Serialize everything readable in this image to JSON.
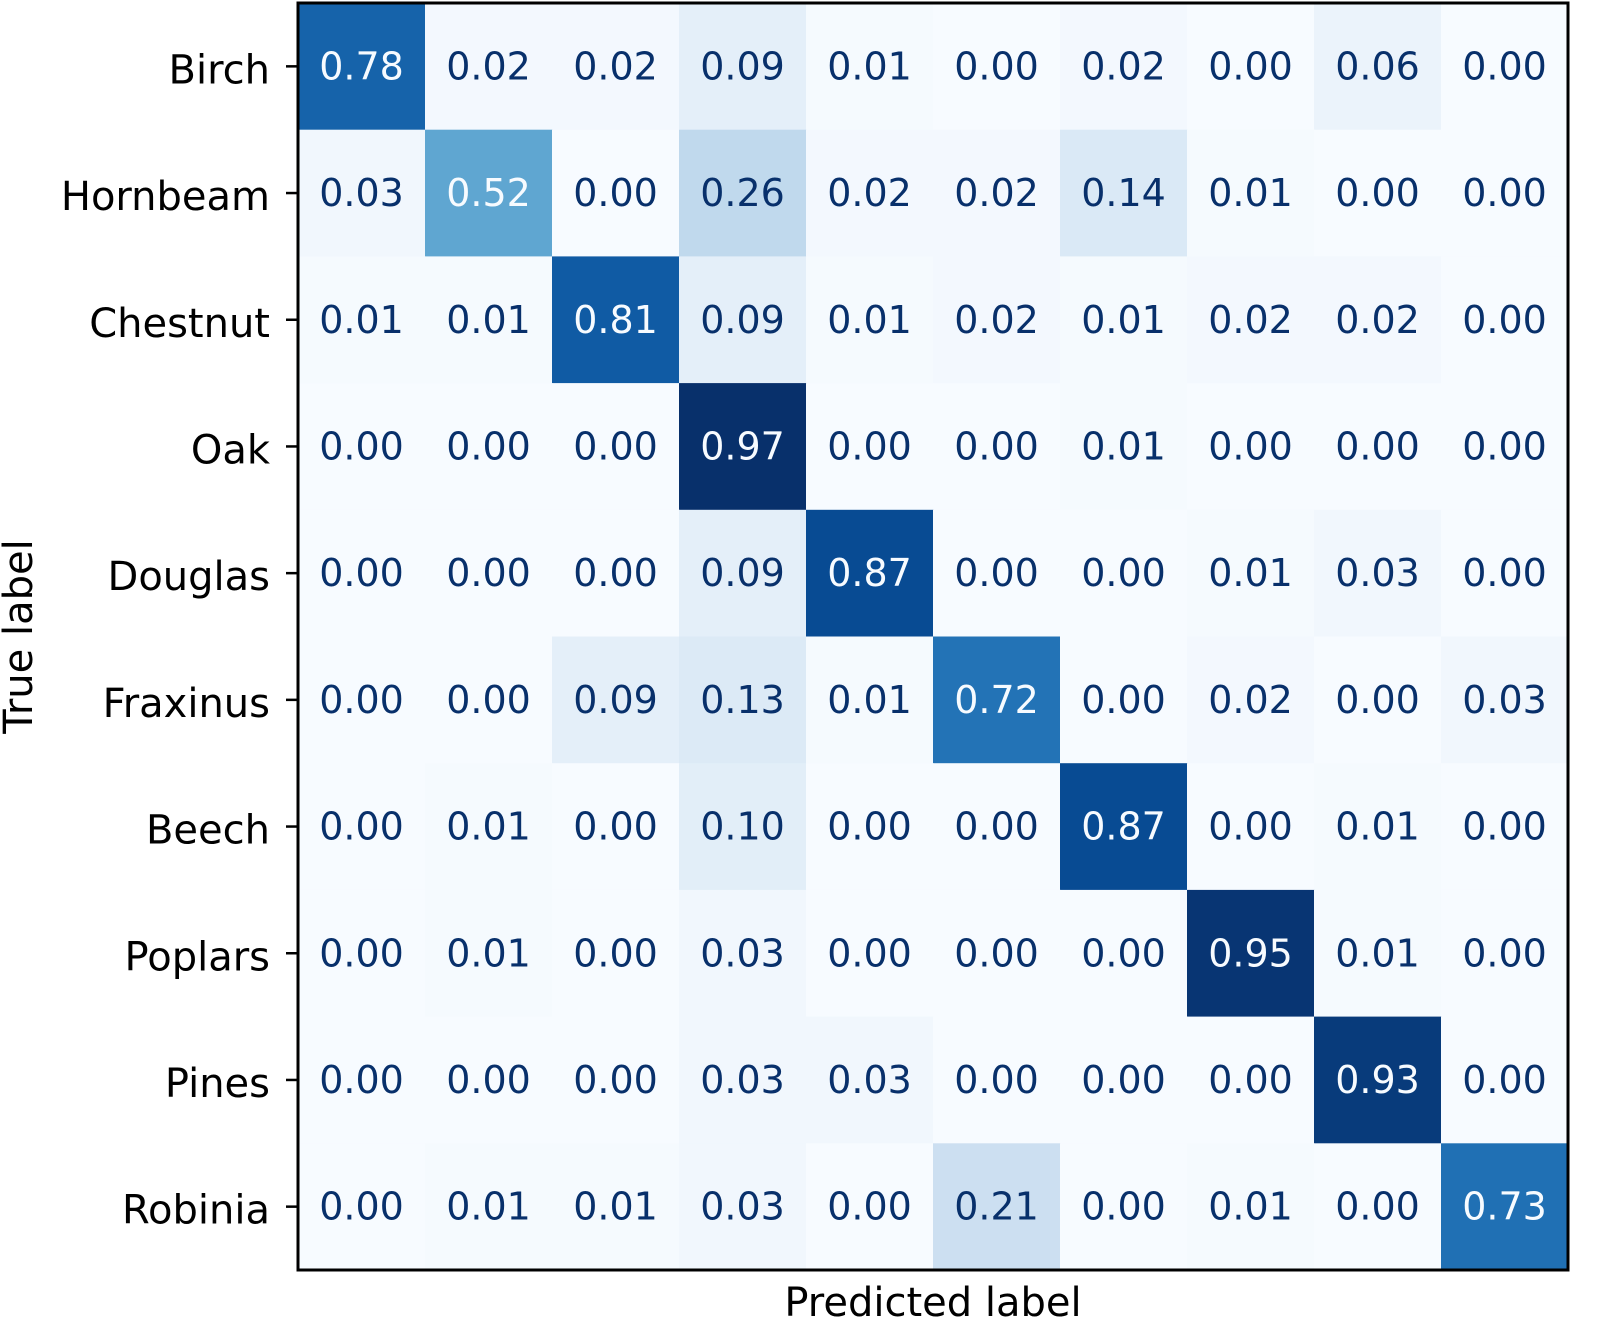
{
  "chart_data": {
    "type": "heatmap",
    "title": "",
    "xlabel": "Predicted label",
    "ylabel": "True label",
    "rows": [
      "Birch",
      "Hornbeam",
      "Chestnut",
      "Oak",
      "Douglas",
      "Fraxinus",
      "Beech",
      "Poplars",
      "Pines",
      "Robinia"
    ],
    "columns": [],
    "values": [
      [
        0.78,
        0.02,
        0.02,
        0.09,
        0.01,
        0.0,
        0.02,
        0.0,
        0.06,
        0.0
      ],
      [
        0.03,
        0.52,
        0.0,
        0.26,
        0.02,
        0.02,
        0.14,
        0.01,
        0.0,
        0.0
      ],
      [
        0.01,
        0.01,
        0.81,
        0.09,
        0.01,
        0.02,
        0.01,
        0.02,
        0.02,
        0.0
      ],
      [
        0.0,
        0.0,
        0.0,
        0.97,
        0.0,
        0.0,
        0.01,
        0.0,
        0.0,
        0.0
      ],
      [
        0.0,
        0.0,
        0.0,
        0.09,
        0.87,
        0.0,
        0.0,
        0.01,
        0.03,
        0.0
      ],
      [
        0.0,
        0.0,
        0.09,
        0.13,
        0.01,
        0.72,
        0.0,
        0.02,
        0.0,
        0.03
      ],
      [
        0.0,
        0.01,
        0.0,
        0.1,
        0.0,
        0.0,
        0.87,
        0.0,
        0.01,
        0.0
      ],
      [
        0.0,
        0.01,
        0.0,
        0.03,
        0.0,
        0.0,
        0.0,
        0.95,
        0.01,
        0.0
      ],
      [
        0.0,
        0.0,
        0.0,
        0.03,
        0.03,
        0.0,
        0.0,
        0.0,
        0.93,
        0.0
      ],
      [
        0.0,
        0.01,
        0.01,
        0.03,
        0.0,
        0.21,
        0.0,
        0.01,
        0.0,
        0.73
      ]
    ],
    "value_format": "2 decimals",
    "value_range": [
      0,
      0.97
    ],
    "colormap": "Blues",
    "colors": {
      "low": "#f7fbff",
      "high": "#08306b",
      "text_dark": "#08306b",
      "text_light": "#f7fbff"
    },
    "grid": false,
    "legend": "none"
  }
}
